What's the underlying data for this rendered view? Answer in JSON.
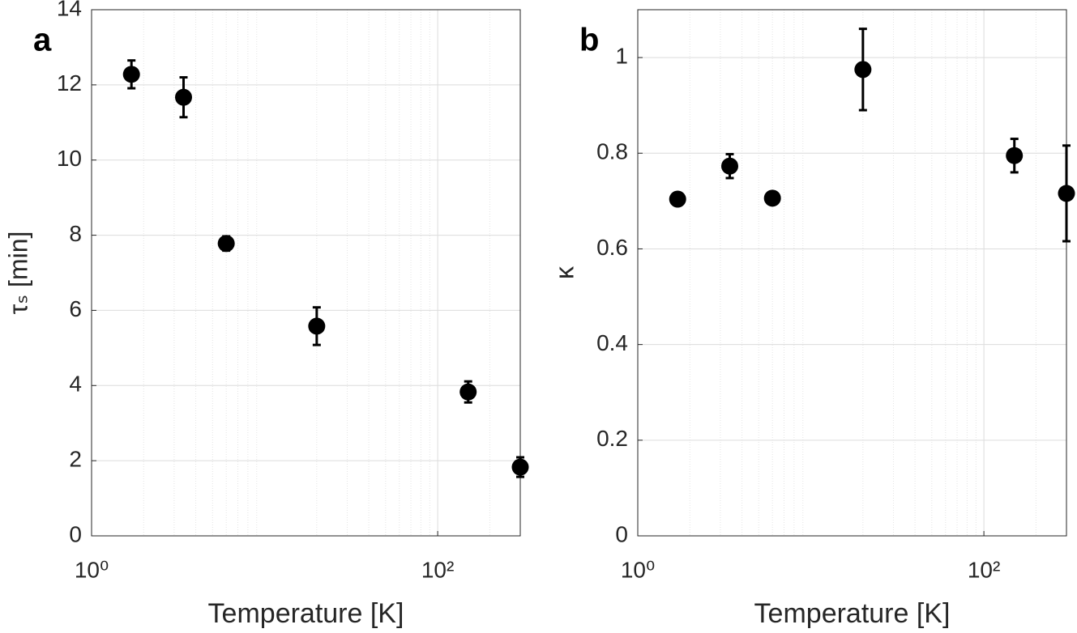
{
  "chart_data": [
    {
      "type": "scatter",
      "panel_label": "a",
      "xlabel": "Temperature [K]",
      "ylabel": "τₛ [min]",
      "xscale": "log",
      "xlim": [
        1,
        300
      ],
      "xticks": [
        {
          "value": 1,
          "label": "10⁰"
        },
        {
          "value": 100,
          "label": "10²"
        }
      ],
      "xminorticks": [
        2,
        3,
        4,
        5,
        6,
        7,
        8,
        9,
        20,
        30,
        40,
        50,
        60,
        70,
        80,
        90,
        200
      ],
      "ylim": [
        0,
        14
      ],
      "yticks": [
        0,
        2,
        4,
        6,
        8,
        10,
        12,
        14
      ],
      "grid": true,
      "color": "#000000",
      "x": [
        1.7,
        3.4,
        6,
        20,
        150,
        300
      ],
      "values": [
        12.28,
        11.67,
        7.78,
        5.58,
        3.83,
        1.83
      ],
      "errors": [
        0.37,
        0.53,
        0.19,
        0.5,
        0.28,
        0.26
      ]
    },
    {
      "type": "scatter",
      "panel_label": "b",
      "xlabel": "Temperature [K]",
      "ylabel": "κ",
      "xscale": "log",
      "xlim": [
        1,
        300
      ],
      "xticks": [
        {
          "value": 1,
          "label": "10⁰"
        },
        {
          "value": 100,
          "label": "10²"
        }
      ],
      "xminorticks": [
        2,
        3,
        4,
        5,
        6,
        7,
        8,
        9,
        20,
        30,
        40,
        50,
        60,
        70,
        80,
        90,
        200
      ],
      "ylim": [
        0,
        1.1
      ],
      "yticks": [
        0,
        0.2,
        0.4,
        0.6,
        0.8,
        1
      ],
      "grid": true,
      "color": "#000000",
      "x": [
        1.7,
        3.4,
        6,
        20,
        150,
        300
      ],
      "values": [
        0.704,
        0.773,
        0.706,
        0.975,
        0.795,
        0.716
      ],
      "errors": [
        0,
        0.025,
        0,
        0.085,
        0.035,
        0.1
      ]
    }
  ]
}
